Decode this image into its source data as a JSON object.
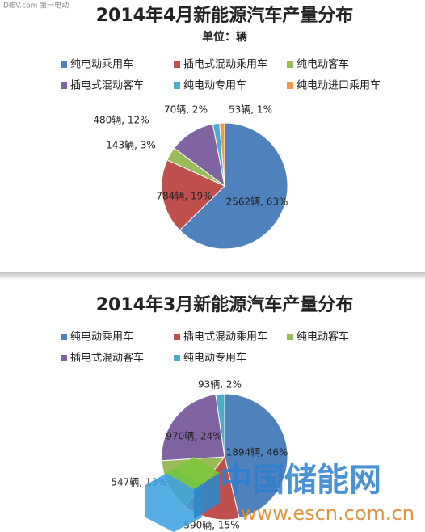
{
  "chart_data": [
    {
      "type": "pie",
      "title": "2014年4月新能源汽车产量分布",
      "subtitle": "单位：辆",
      "categories": [
        "纯电动乘用车",
        "插电式混动乘用车",
        "纯电动客车",
        "插电式混动客车",
        "纯电动专用车",
        "纯电动进口乘用车"
      ],
      "values": [
        2562,
        784,
        143,
        480,
        70,
        53
      ],
      "value_labels": [
        "2562辆, 63%",
        "784辆, 19%",
        "143辆, 3%",
        "480辆, 12%",
        "70辆, 2%",
        "53辆, 1%"
      ],
      "colors": [
        "#4f81bd",
        "#c0504d",
        "#9bbb59",
        "#8064a2",
        "#4bacc6",
        "#f79646"
      ]
    },
    {
      "type": "pie",
      "title": "2014年3月新能源汽车产量分布",
      "categories": [
        "纯电动乘用车",
        "插电式混动乘用车",
        "纯电动客车",
        "插电式混动客车",
        "纯电动专用车"
      ],
      "values": [
        1894,
        590,
        547,
        970,
        93
      ],
      "value_labels": [
        "1894辆, 46%",
        "590辆, 15%",
        "547辆, 13%",
        "970辆, 24%",
        "93辆, 2%"
      ],
      "colors": [
        "#4f81bd",
        "#c0504d",
        "#9bbb59",
        "#8064a2",
        "#4bacc6"
      ]
    }
  ],
  "watermarks": {
    "source": "DIEV.com 第一电动",
    "brand": "中国储能网",
    "url": "www.escn.com.cn"
  }
}
